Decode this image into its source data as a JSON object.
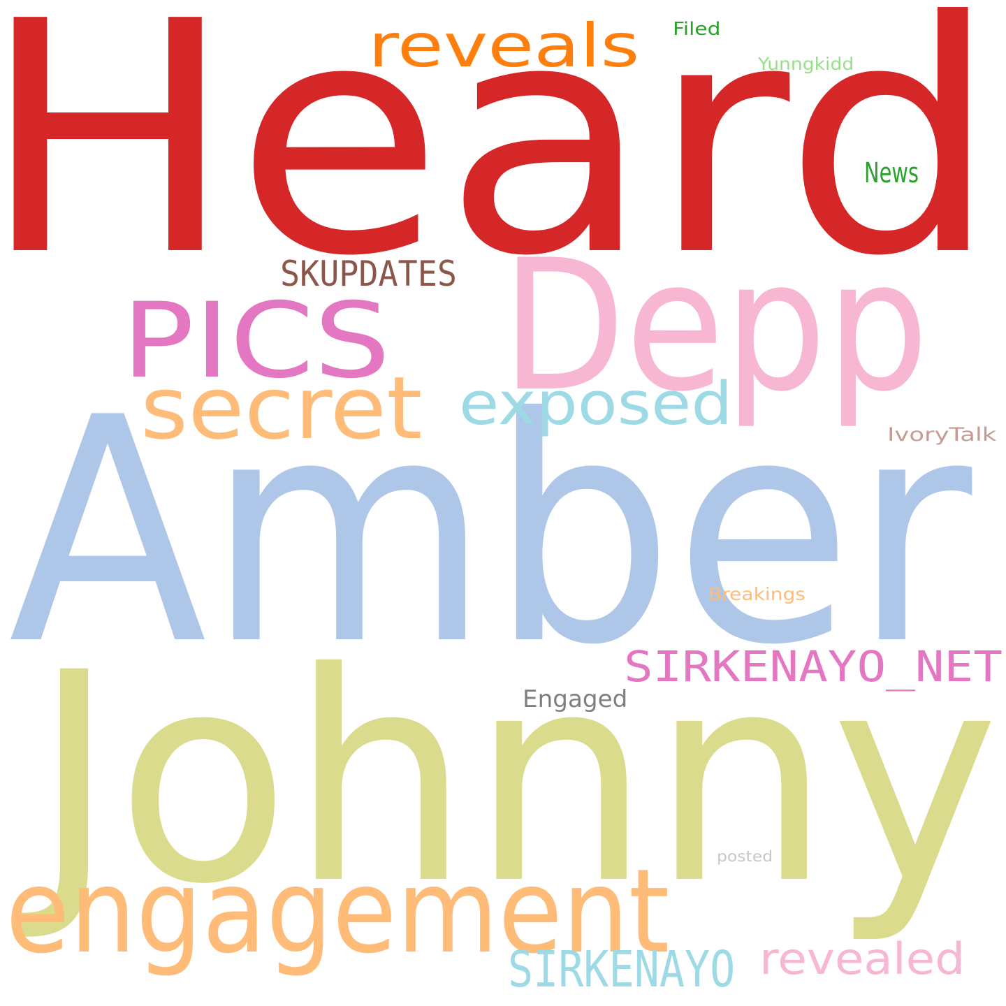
{
  "word_cloud": {
    "words": [
      {
        "id": "heard",
        "text": "Heard",
        "color": "#d62728"
      },
      {
        "id": "amber",
        "text": "Amber",
        "color": "#aec7e8"
      },
      {
        "id": "johnny",
        "text": "Johnny",
        "color": "#dbdb8d"
      },
      {
        "id": "depp",
        "text": "Depp",
        "color": "#f7b6d2"
      },
      {
        "id": "engagement",
        "text": "engagement",
        "color": "#ffbb78"
      },
      {
        "id": "pics",
        "text": "PICS",
        "color": "#e377c2"
      },
      {
        "id": "secret",
        "text": "secret",
        "color": "#ffbb78"
      },
      {
        "id": "exposed",
        "text": "exposed",
        "color": "#9edae5"
      },
      {
        "id": "reveals",
        "text": "reveals",
        "color": "#ff7f0e"
      },
      {
        "id": "sirkenayo-net",
        "text": "SIRKENAYO_NET",
        "color": "#e377c2"
      },
      {
        "id": "sirkenayo",
        "text": "SIRKENAYO",
        "color": "#9edae5"
      },
      {
        "id": "revealed",
        "text": "revealed",
        "color": "#f7b6d2"
      },
      {
        "id": "skupdates",
        "text": "SKUPDATES",
        "color": "#8c564b"
      },
      {
        "id": "news",
        "text": "News",
        "color": "#2ca02c"
      },
      {
        "id": "engaged",
        "text": "Engaged",
        "color": "#7f7f7f"
      },
      {
        "id": "ivorytalk",
        "text": "IvoryTalk",
        "color": "#c49c94"
      },
      {
        "id": "yunngkidd",
        "text": "Yunngkidd",
        "color": "#98df8a"
      },
      {
        "id": "breakings",
        "text": "Breakings",
        "color": "#ffbb78"
      },
      {
        "id": "filed",
        "text": "Filed",
        "color": "#2ca02c"
      },
      {
        "id": "posted",
        "text": "posted",
        "color": "#c7c7c7"
      }
    ]
  }
}
